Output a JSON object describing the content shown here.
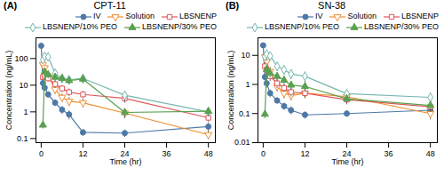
{
  "chart_data": [
    {
      "type": "line",
      "title": "CPT-11",
      "annotations": [
        "(A)"
      ],
      "x_label": "Time (hr)",
      "y_label": "Concentration (ng/mL)",
      "xlim": [
        -1.5,
        50
      ],
      "xticks": [
        0,
        12,
        24,
        36,
        48
      ],
      "ylim": [
        0.07,
        600
      ],
      "yticks": [
        0.1,
        1,
        10,
        100
      ],
      "log": "y",
      "grid": false,
      "legend": "upper right",
      "series": [
        {
          "name": "IV",
          "marker": "circle",
          "x": [
            0,
            0.5,
            1,
            2,
            4,
            6,
            8,
            12,
            24,
            48
          ],
          "values": [
            300,
            12.0,
            8.0,
            4.5,
            2.2,
            1.2,
            0.8,
            0.17,
            0.16,
            0.28
          ],
          "errors": [
            70,
            3.0,
            2.0,
            1.2,
            0.6,
            0.4,
            0.3,
            0.05,
            0.05,
            0.1
          ]
        },
        {
          "name": "Solution",
          "marker": "open-triangle-down",
          "x": [
            0.5,
            1,
            2,
            4,
            6,
            8,
            12,
            24,
            48
          ],
          "values": [
            60,
            45,
            22,
            7,
            3.5,
            2.5,
            2.2,
            0.9,
            0.14
          ],
          "errors": [
            20,
            18,
            8,
            2.5,
            1.2,
            0.9,
            0.8,
            0.35,
            0.05
          ]
        },
        {
          "name": "LBSNENP",
          "marker": "open-square",
          "x": [
            0.5,
            1,
            2,
            4,
            6,
            8,
            12,
            24,
            48
          ],
          "values": [
            20,
            22,
            18,
            11,
            7.5,
            5.5,
            4.5,
            3.2,
            0.6
          ],
          "errors": [
            5,
            6,
            5,
            3.5,
            2.2,
            1.8,
            1.4,
            1.1,
            0.2
          ]
        },
        {
          "name": "LBSNENP/10% PEO",
          "marker": "open-diamond",
          "x": [
            0.5,
            1,
            2,
            4,
            6,
            8,
            12,
            24,
            48
          ],
          "values": [
            90,
            120,
            115,
            28,
            18,
            16,
            18,
            4.2,
            1.0
          ],
          "errors": [
            28,
            38,
            32,
            9,
            6,
            5.5,
            6.5,
            1.8,
            0.3
          ]
        },
        {
          "name": "LBSNENP/30% PEO",
          "marker": "triangle",
          "x": [
            0.5,
            1,
            2,
            4,
            6,
            8,
            12,
            24,
            48
          ],
          "values": [
            0.32,
            32,
            25,
            20,
            18,
            15,
            17,
            0.95,
            1.05
          ],
          "errors": [
            0.09,
            9,
            7.5,
            6.5,
            5.5,
            4.5,
            5.5,
            0.38,
            0.38
          ]
        }
      ]
    },
    {
      "type": "line",
      "title": "SN-38",
      "annotations": [
        "(B)"
      ],
      "x_label": "Time (hr)",
      "y_label": "Concentration (ng/mL)",
      "xlim": [
        -1.5,
        50
      ],
      "xticks": [
        0,
        12,
        24,
        36,
        48
      ],
      "ylim": [
        0.01,
        40
      ],
      "yticks": [
        0.01,
        0.1,
        1,
        10
      ],
      "log": "y",
      "grid": false,
      "legend": "upper right",
      "series": [
        {
          "name": "IV",
          "marker": "circle",
          "x": [
            0,
            0.5,
            1,
            2,
            4,
            6,
            8,
            12,
            24,
            48
          ],
          "values": [
            22,
            1.8,
            1.1,
            0.5,
            0.28,
            0.18,
            0.13,
            0.09,
            0.1,
            0.13
          ],
          "errors": [
            4,
            0.5,
            0.35,
            0.15,
            0.07,
            0.05,
            0.04,
            0.025,
            0.025,
            0.04
          ]
        },
        {
          "name": "Solution",
          "marker": "open-triangle-down",
          "x": [
            0.5,
            1,
            2,
            4,
            6,
            8,
            12,
            24,
            48
          ],
          "values": [
            9.0,
            6.0,
            2.8,
            0.85,
            0.5,
            0.42,
            0.5,
            0.38,
            0.1
          ],
          "errors": [
            3.0,
            2.2,
            1.0,
            0.3,
            0.18,
            0.15,
            0.18,
            0.14,
            0.04
          ]
        },
        {
          "name": "LBSNENP",
          "marker": "open-square",
          "x": [
            0.5,
            1,
            2,
            4,
            6,
            8,
            12,
            24,
            48
          ],
          "values": [
            4.2,
            3.2,
            1.9,
            1.1,
            0.75,
            0.55,
            0.5,
            0.3,
            0.17
          ],
          "errors": [
            1.4,
            1.1,
            0.65,
            0.38,
            0.22,
            0.18,
            0.16,
            0.1,
            0.06
          ]
        },
        {
          "name": "LBSNENP/10% PEO",
          "marker": "open-diamond",
          "x": [
            0.5,
            1,
            2,
            4,
            6,
            8,
            12,
            24,
            48
          ],
          "values": [
            9.0,
            11.0,
            9.5,
            4.2,
            3.2,
            2.3,
            1.9,
            0.48,
            0.36
          ],
          "errors": [
            2.8,
            3.2,
            2.8,
            1.4,
            1.1,
            0.85,
            0.75,
            0.18,
            0.14
          ]
        },
        {
          "name": "LBSNENP/30% PEO",
          "marker": "triangle",
          "x": [
            0.5,
            1,
            2,
            4,
            6,
            8,
            12,
            24,
            48
          ],
          "values": [
            0.095,
            3.3,
            2.4,
            1.9,
            1.4,
            0.95,
            0.85,
            0.32,
            0.19
          ],
          "errors": [
            0.028,
            1.1,
            0.75,
            0.65,
            0.48,
            0.32,
            0.28,
            0.11,
            0.065
          ]
        }
      ]
    }
  ]
}
